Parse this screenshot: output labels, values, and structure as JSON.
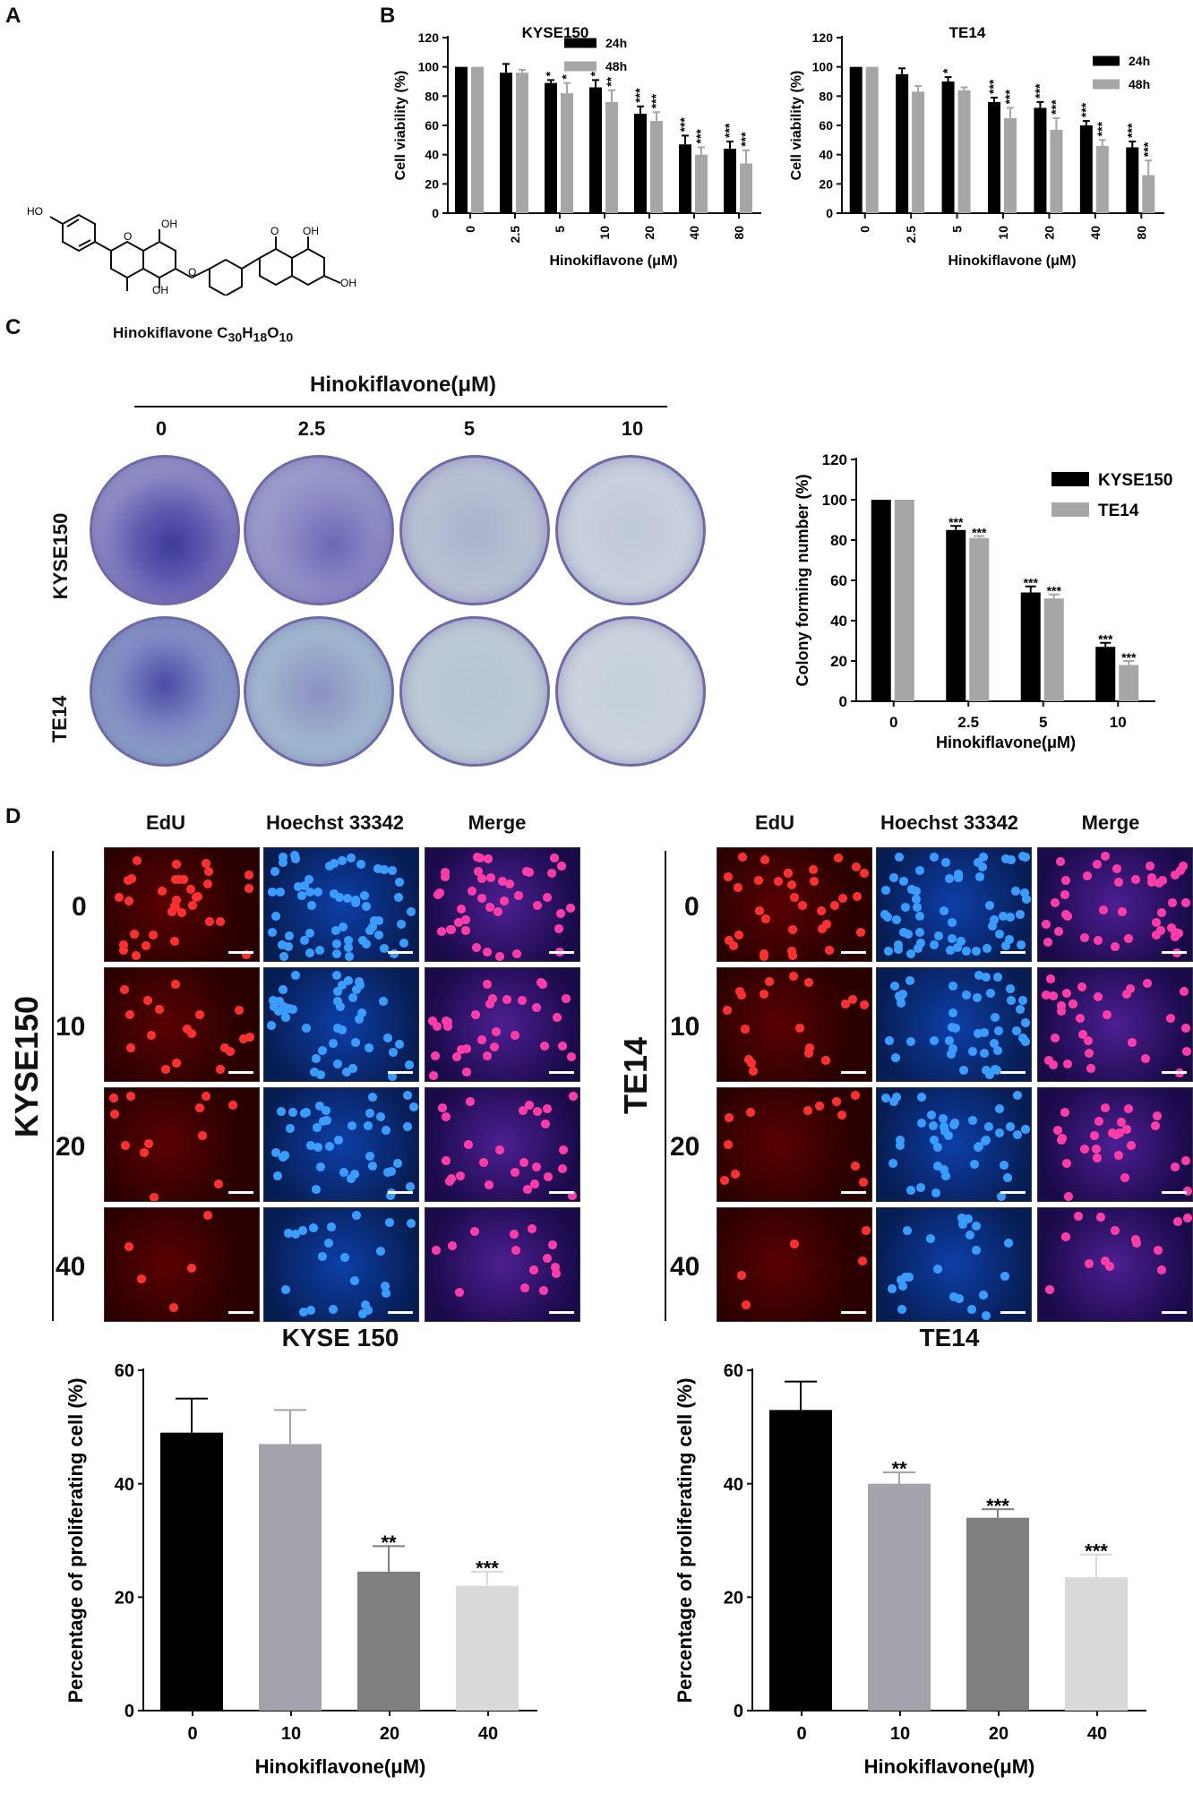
{
  "panels": {
    "A": "A",
    "B": "B",
    "C": "C",
    "D": "D"
  },
  "panel_a": {
    "compound_label_prefix": "Hinokiflavone C",
    "sub_30": "30",
    "h": "H",
    "sub_18": "18",
    "o": "O",
    "sub_10": "10",
    "atoms": {
      "HO": "HO",
      "OH": "OH",
      "O": "O"
    }
  },
  "panel_c": {
    "title": "Hinokiflavone(μM)",
    "doses": [
      "0",
      "2.5",
      "5",
      "10"
    ],
    "rows": [
      "KYSE150",
      "TE14"
    ]
  },
  "panel_d": {
    "headers": [
      "EdU",
      "Hoechst 33342",
      "Merge"
    ],
    "doses": [
      "0",
      "10",
      "20",
      "40"
    ],
    "left_cell": "KYSE150",
    "right_cell": "TE14"
  },
  "colors": {
    "black": "#000000",
    "gray": "#a6a6a6",
    "light_gray": "#d9d9d9",
    "dark_gray": "#7f7f7f",
    "mid_gray": "#a3a3ab"
  },
  "chart_data": [
    {
      "id": "b_kyse150",
      "type": "bar",
      "title": "KYSE150",
      "xlabel": "Hinokiflavone (μM)",
      "ylabel": "Cell viability (%)",
      "categories": [
        "0",
        "2.5",
        "5",
        "10",
        "20",
        "40",
        "80"
      ],
      "ylim": [
        0,
        120
      ],
      "yticks": [
        "0",
        "20",
        "40",
        "60",
        "80",
        "100",
        "120"
      ],
      "legend": "top-right",
      "series": [
        {
          "name": "24h",
          "values": [
            100,
            96,
            89,
            86,
            68,
            47,
            44
          ],
          "errors": [
            0,
            6,
            2,
            5,
            5,
            6,
            5
          ],
          "sig": [
            "",
            "",
            "*",
            "*",
            "***",
            "***",
            "***"
          ]
        },
        {
          "name": "48h",
          "values": [
            100,
            96,
            82,
            76,
            63,
            40,
            34
          ],
          "errors": [
            0,
            2,
            7,
            8,
            6,
            5,
            9
          ],
          "sig": [
            "",
            "",
            "*",
            "**",
            "***",
            "***",
            "***"
          ]
        }
      ]
    },
    {
      "id": "b_te14",
      "type": "bar",
      "title": "TE14",
      "xlabel": "Hinokiflavone (μM)",
      "ylabel": "Cell viability (%)",
      "categories": [
        "0",
        "2.5",
        "5",
        "10",
        "20",
        "40",
        "80"
      ],
      "ylim": [
        0,
        120
      ],
      "yticks": [
        "0",
        "20",
        "40",
        "60",
        "80",
        "100",
        "120"
      ],
      "legend": "top-right",
      "series": [
        {
          "name": "24h",
          "values": [
            100,
            95,
            90,
            76,
            72,
            60,
            45
          ],
          "errors": [
            0,
            4,
            3,
            3,
            4,
            3,
            4
          ],
          "sig": [
            "",
            "",
            "*",
            "***",
            "***",
            "***",
            "***"
          ]
        },
        {
          "name": "48h",
          "values": [
            100,
            83,
            84,
            65,
            57,
            46,
            26
          ],
          "errors": [
            0,
            4,
            2,
            7,
            8,
            4,
            10
          ],
          "sig": [
            "",
            "",
            "",
            "***",
            "***",
            "***",
            "***"
          ]
        }
      ]
    },
    {
      "id": "c_colony",
      "type": "bar",
      "title": "",
      "xlabel": "Hinokiflavone(μM)",
      "ylabel": "Colony forming number (%)",
      "categories": [
        "0",
        "2.5",
        "5",
        "10"
      ],
      "ylim": [
        0,
        120
      ],
      "yticks": [
        "0",
        "20",
        "40",
        "60",
        "80",
        "100",
        "120"
      ],
      "legend": "top-right",
      "series": [
        {
          "name": "KYSE150",
          "values": [
            100,
            85,
            54,
            27
          ],
          "errors": [
            0,
            2,
            3,
            2
          ],
          "sig": [
            "",
            "***",
            "***",
            "***"
          ]
        },
        {
          "name": "TE14",
          "values": [
            100,
            81,
            51,
            18
          ],
          "errors": [
            0,
            1,
            2,
            2
          ],
          "sig": [
            "",
            "***",
            "***",
            "***"
          ]
        }
      ]
    },
    {
      "id": "d_kyse",
      "type": "bar",
      "title": "KYSE 150",
      "xlabel": "Hinokiflavone(μM)",
      "ylabel": "Percentage of proliferating cell (%)",
      "categories": [
        "0",
        "10",
        "20",
        "40"
      ],
      "ylim": [
        0,
        60
      ],
      "yticks": [
        "0",
        "20",
        "40",
        "60"
      ],
      "values": [
        49,
        47,
        24.5,
        22
      ],
      "errors": [
        6,
        6,
        4.5,
        2.5
      ],
      "sig": [
        "",
        "",
        "**",
        "***"
      ],
      "bar_colors": [
        "#000000",
        "#a3a3ab",
        "#7f7f7f",
        "#d9d9d9"
      ]
    },
    {
      "id": "d_te14",
      "type": "bar",
      "title": "TE14",
      "xlabel": "Hinokiflavone(μM)",
      "ylabel": "Percentage of proliferating cell (%)",
      "categories": [
        "0",
        "10",
        "20",
        "40"
      ],
      "ylim": [
        0,
        60
      ],
      "yticks": [
        "0",
        "20",
        "40",
        "60"
      ],
      "values": [
        53,
        40,
        34,
        23.5
      ],
      "errors": [
        5,
        2,
        1.5,
        4
      ],
      "sig": [
        "",
        "**",
        "***",
        "***"
      ],
      "bar_colors": [
        "#000000",
        "#a3a3ab",
        "#7f7f7f",
        "#d9d9d9"
      ]
    }
  ]
}
